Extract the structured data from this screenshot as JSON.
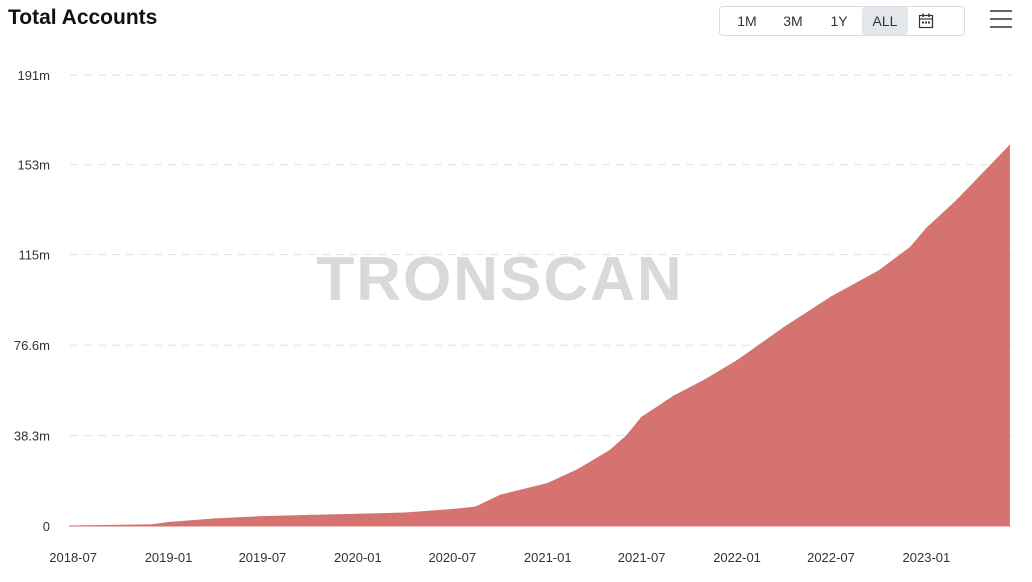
{
  "header": {
    "title": "Total Accounts",
    "ranges": [
      "1M",
      "3M",
      "1Y",
      "ALL"
    ],
    "active_range": "ALL",
    "calendar_icon": "calendar-icon",
    "menu_icon": "hamburger-menu-icon"
  },
  "watermark": "TRONSCAN",
  "colors": {
    "area": "#d4736f",
    "grid": "#e1e1e1",
    "active_range_bg": "#e3e6ea"
  },
  "chart_data": {
    "type": "area",
    "title": "Total Accounts",
    "xlabel": "",
    "ylabel": "",
    "y_tick_labels": [
      "0",
      "38.3m",
      "76.6m",
      "115m",
      "153m",
      "191m"
    ],
    "y_ticks": [
      0,
      38.3,
      76.6,
      115,
      153,
      191
    ],
    "ylim": [
      0,
      191
    ],
    "x_tick_labels": [
      "2018-07",
      "2019-01",
      "2019-07",
      "2020-01",
      "2020-07",
      "2021-01",
      "2021-07",
      "2022-01",
      "2022-07",
      "2023-01"
    ],
    "xlim": [
      "2018-06-25",
      "2023-06-15"
    ],
    "grid": true,
    "series": [
      {
        "values_unit": "millions",
        "x": [
          "2018-06-25",
          "2018-12-01",
          "2019-01-01",
          "2019-04-01",
          "2019-07-01",
          "2019-10-01",
          "2020-01-01",
          "2020-04-01",
          "2020-07-01",
          "2020-08-15",
          "2020-10-01",
          "2021-01-01",
          "2021-03-01",
          "2021-05-01",
          "2021-06-01",
          "2021-07-01",
          "2021-09-01",
          "2021-11-01",
          "2022-01-01",
          "2022-04-01",
          "2022-07-01",
          "2022-10-01",
          "2022-12-01",
          "2023-01-01",
          "2023-03-01",
          "2023-06-10"
        ],
        "values": [
          0,
          0.5,
          1.5,
          3,
          4,
          4.5,
          5,
          5.5,
          7,
          8,
          13,
          18,
          24,
          32,
          38,
          46,
          55,
          62,
          70,
          84,
          97,
          108,
          118,
          126,
          138,
          161
        ]
      }
    ]
  }
}
